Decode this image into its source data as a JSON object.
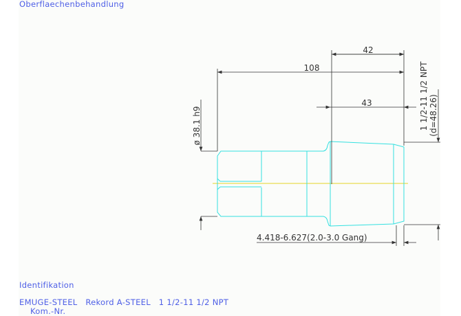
{
  "header": {
    "surface_label": "Oberflaechenbehandlung"
  },
  "drawing": {
    "dim_overall": "108",
    "dim_top": "42",
    "dim_thread": "43",
    "dim_shank_dia": "ø 38.1 h9",
    "thread_spec": "1 1/2-11 1/2 NPT",
    "thread_dia": "(d=48.26)",
    "torque_note": "4.418-6.627(2.0-3.0 Gang)",
    "colors": {
      "part": "#33e0e0",
      "centerline": "#f0e890",
      "dimension": "#333333",
      "text": "#4d5ee6"
    }
  },
  "footer": {
    "ident_label": "Identifikation",
    "product_line": "EMUGE-STEEL   Rekord A-STEEL   1 1/2-11 1/2 NPT",
    "kom_label": "Kom.-Nr."
  }
}
